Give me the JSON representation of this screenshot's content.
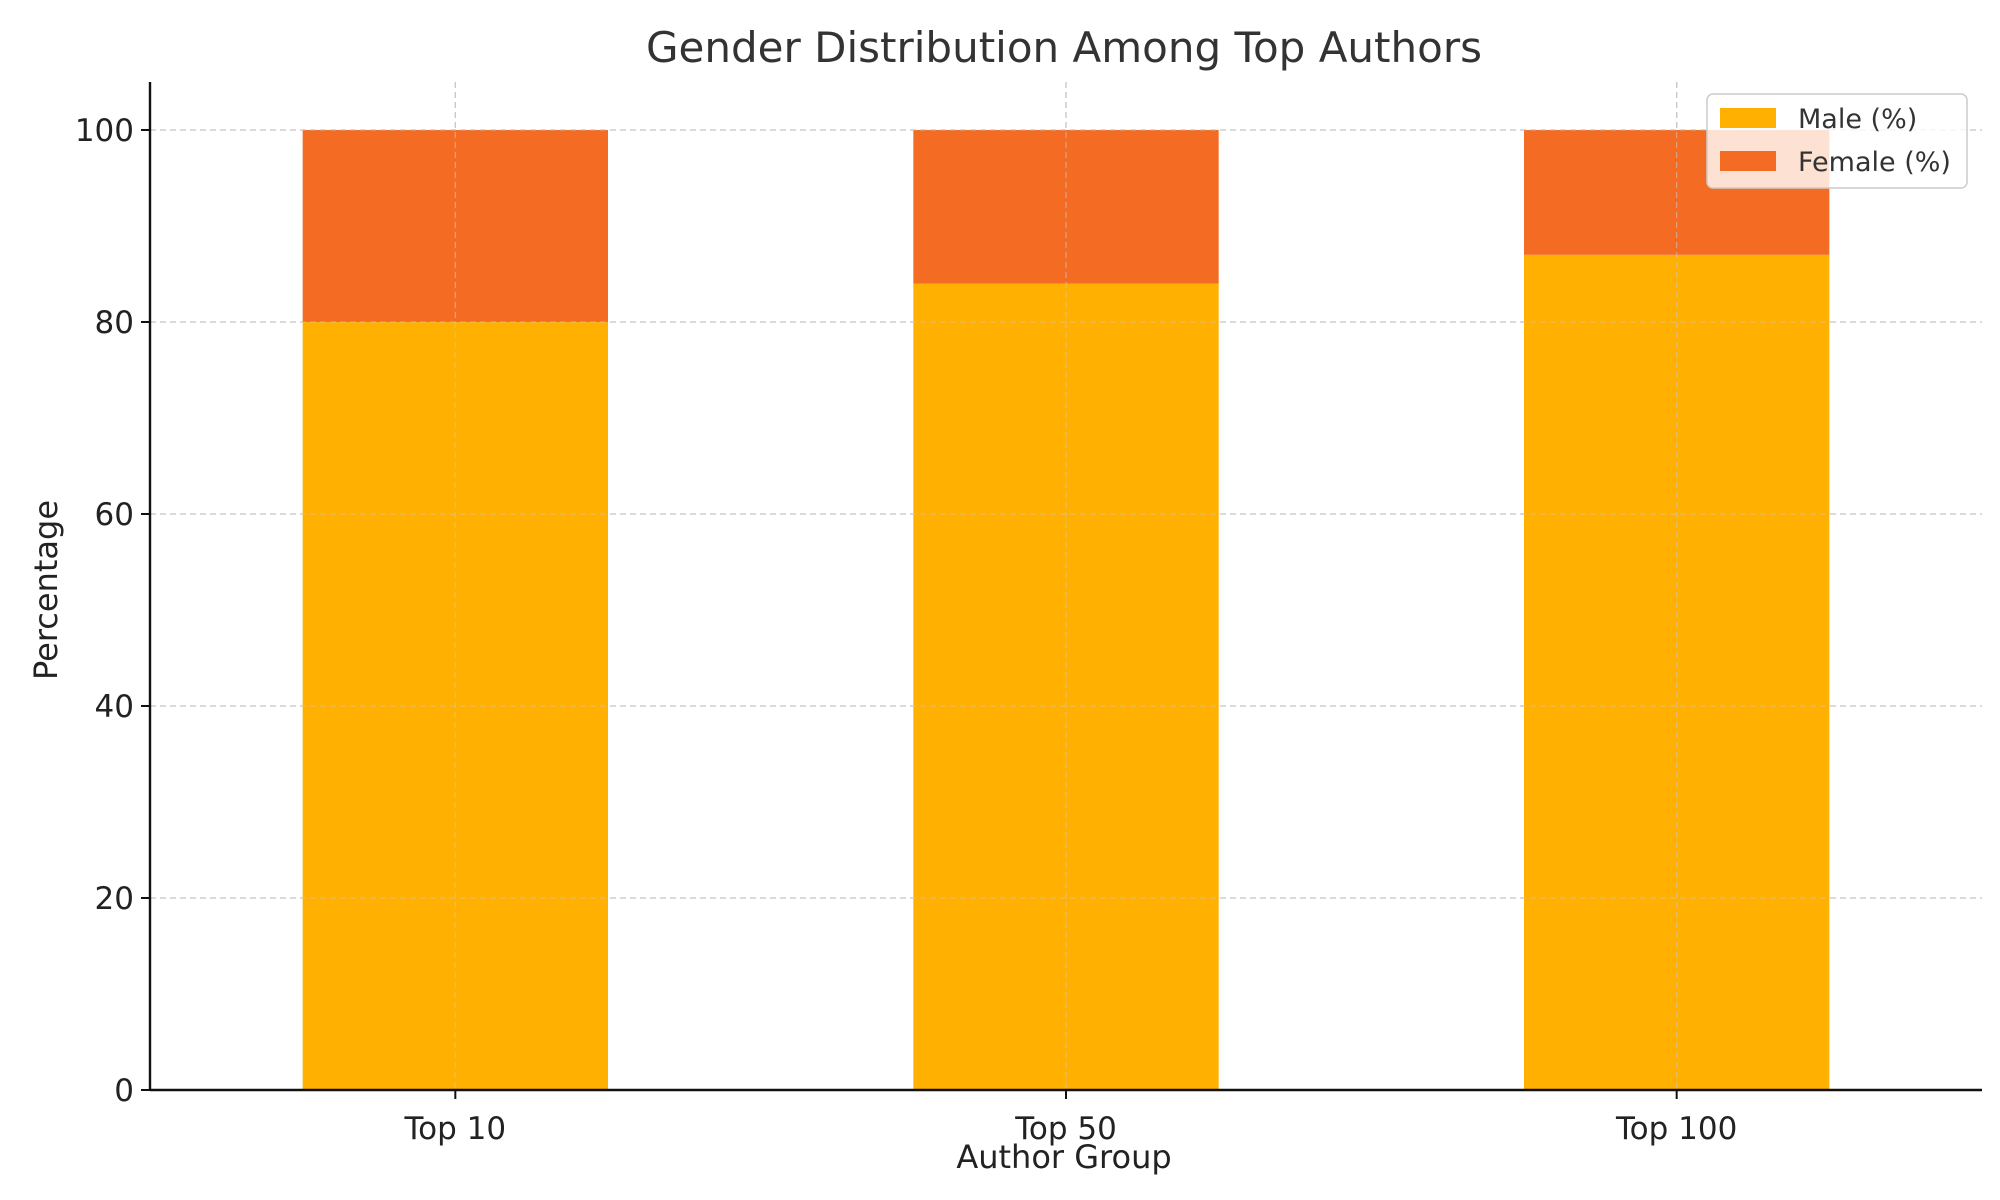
{
  "chart_data": {
    "type": "bar",
    "stacked": true,
    "title": "Gender Distribution Among Top Authors",
    "xlabel": "Author Group",
    "ylabel": "Percentage",
    "categories": [
      "Top 10",
      "Top 50",
      "Top 100"
    ],
    "series": [
      {
        "name": "Male (%)",
        "values": [
          80,
          84,
          87
        ],
        "color": "#FFB000"
      },
      {
        "name": "Female (%)",
        "values": [
          20,
          16,
          13
        ],
        "color": "#F46B23"
      }
    ],
    "ylim": [
      0,
      105
    ],
    "yticks": [
      0,
      20,
      40,
      60,
      80,
      100
    ],
    "ytick_labels": [
      "0",
      "20",
      "40",
      "60",
      "80",
      "100"
    ],
    "grid": true,
    "legend_position": "top-right"
  }
}
